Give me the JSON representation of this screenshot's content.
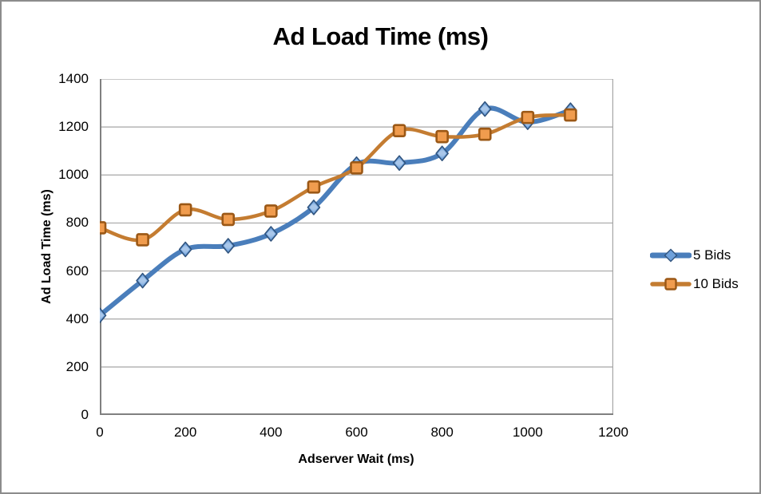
{
  "chart_data": {
    "type": "line",
    "title": "Ad Load Time (ms)",
    "xlabel": "Adserver Wait (ms)",
    "ylabel": "Ad Load Time (ms)",
    "x": [
      0,
      100,
      200,
      300,
      400,
      500,
      600,
      700,
      800,
      900,
      1000,
      1100
    ],
    "series": [
      {
        "name": "5 Bids",
        "values": [
          415,
          560,
          690,
          705,
          755,
          865,
          1045,
          1050,
          1090,
          1275,
          1220,
          1270
        ],
        "line_color": "#4A7EBB",
        "line_width": 6,
        "marker": "diamond",
        "marker_fill": "#6FA1DB",
        "marker_fill_light": "#AECBEC",
        "marker_border": "#31547E",
        "marker_size": 15
      },
      {
        "name": "10 Bids",
        "values": [
          780,
          730,
          855,
          815,
          850,
          950,
          1030,
          1185,
          1160,
          1170,
          1240,
          1250
        ],
        "line_color": "#C47C31",
        "line_width": 4.5,
        "marker": "square",
        "marker_fill": "#F09C4E",
        "marker_fill_light": "#F8C habits",
        "marker_border": "#9B5816",
        "marker_size": 14
      }
    ],
    "xlim": [
      0,
      1200
    ],
    "ylim": [
      0,
      1400
    ],
    "x_ticks": [
      0,
      200,
      400,
      600,
      800,
      1000,
      1200
    ],
    "y_ticks": [
      0,
      200,
      400,
      600,
      800,
      1000,
      1200,
      1400
    ],
    "grid": "horizontal",
    "smoothed": true,
    "legend_position": "right",
    "colors": {
      "gridline": "#A6A6A6",
      "axis": "#808080",
      "plot_border": "#A6A6A6",
      "chart_border": "#8C8C8C",
      "background": "#FFFFFF",
      "text": "#000000"
    }
  }
}
